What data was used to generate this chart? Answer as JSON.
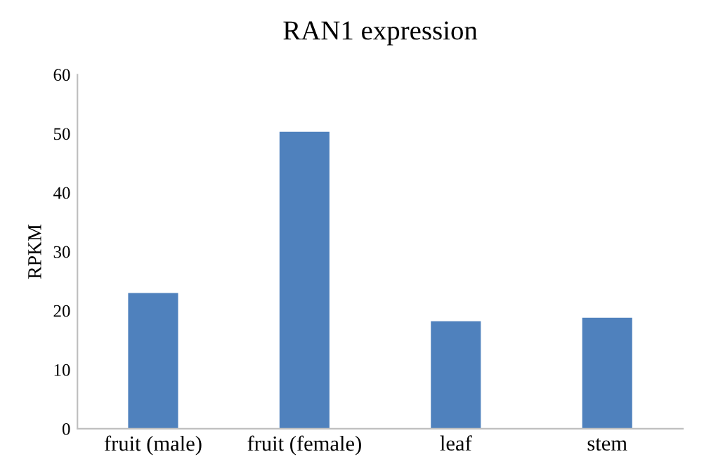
{
  "chart_data": {
    "type": "bar",
    "title": "RAN1 expression",
    "ylabel": "RPKM",
    "categories": [
      "fruit (male)",
      "fruit (female)",
      "leaf",
      "stem"
    ],
    "values": [
      23,
      50.3,
      18.2,
      18.8
    ],
    "color": "#4f81bd",
    "ylim": [
      0,
      60
    ],
    "yticks": [
      0,
      10,
      20,
      30,
      40,
      50,
      60
    ],
    "grid": false,
    "legend": false
  }
}
